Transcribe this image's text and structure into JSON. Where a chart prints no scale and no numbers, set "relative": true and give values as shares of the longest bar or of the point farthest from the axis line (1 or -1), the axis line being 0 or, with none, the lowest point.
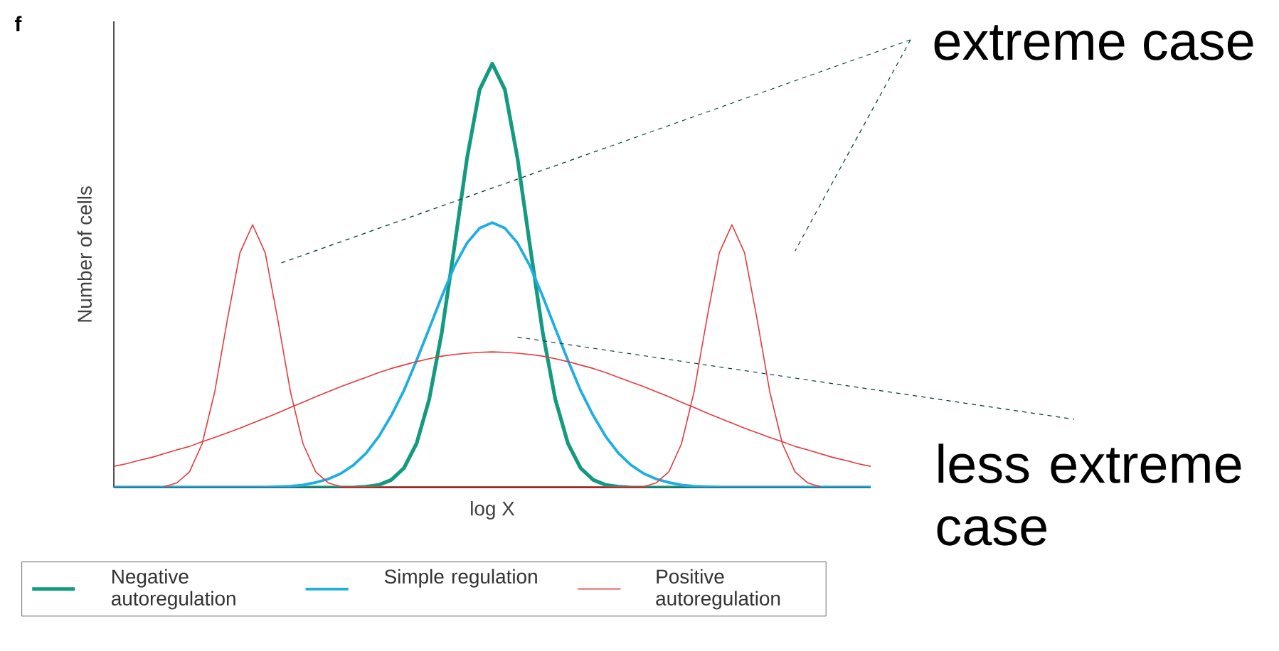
{
  "chart_data": {
    "type": "line",
    "relative": true,
    "xlabel": "log X",
    "ylabel": "Number of cells",
    "categories": [
      null,
      null,
      null,
      null,
      null,
      null,
      null,
      null,
      null,
      null,
      null,
      null,
      null,
      null,
      null,
      null,
      null,
      null,
      null,
      null,
      null,
      null,
      null,
      null,
      null,
      null,
      null,
      null,
      null,
      null,
      null,
      null,
      null,
      null,
      null,
      null,
      null,
      null,
      null,
      null,
      null,
      null,
      null,
      null,
      null,
      null,
      null,
      null,
      null,
      null,
      null,
      null,
      null,
      null,
      null,
      null,
      null,
      null,
      null,
      null,
      null
    ],
    "series": [
      {
        "name": "Negative autoregulation",
        "color": "#139a80",
        "values": [
          0,
          0,
          0,
          0,
          0,
          0,
          0,
          0,
          0,
          0,
          0,
          0,
          0,
          0,
          0,
          0,
          0,
          0,
          0,
          0,
          0.002,
          0.006,
          0.018,
          0.046,
          0.104,
          0.208,
          0.366,
          0.568,
          0.777,
          0.939,
          1,
          0.939,
          0.777,
          0.568,
          0.366,
          0.208,
          0.104,
          0.046,
          0.018,
          0.006,
          0.002,
          0,
          0,
          0,
          0,
          0,
          0,
          0,
          0,
          0,
          0,
          0,
          0,
          0,
          0,
          0,
          0,
          0,
          0,
          0,
          0
        ]
      },
      {
        "name": "Simple regulation",
        "color": "#1eaee0",
        "values": [
          0,
          0,
          0,
          0,
          0,
          0,
          0,
          0,
          0,
          0,
          0,
          0,
          0,
          0.002,
          0.003,
          0.006,
          0.012,
          0.02,
          0.033,
          0.053,
          0.081,
          0.12,
          0.17,
          0.229,
          0.3,
          0.375,
          0.451,
          0.522,
          0.577,
          0.612,
          0.625,
          0.612,
          0.577,
          0.522,
          0.451,
          0.375,
          0.3,
          0.229,
          0.17,
          0.12,
          0.081,
          0.053,
          0.033,
          0.02,
          0.012,
          0.006,
          0.003,
          0.002,
          0,
          0,
          0,
          0,
          0,
          0,
          0,
          0,
          0,
          0,
          0,
          0,
          0
        ]
      },
      {
        "name": "Positive autoregulation",
        "color": "#e63a3c",
        "values": [
          null,
          null,
          null,
          null,
          0.002,
          0.011,
          0.037,
          0.103,
          0.226,
          0.396,
          0.554,
          0.62,
          0.554,
          0.396,
          0.226,
          0.103,
          0.037,
          0.011,
          0.002,
          null,
          null,
          null,
          null,
          null,
          null,
          null,
          null,
          null,
          null,
          null,
          null,
          null,
          null,
          null,
          null,
          null,
          null,
          null,
          null,
          null,
          null,
          null,
          0.002,
          0.011,
          0.037,
          0.103,
          0.226,
          0.396,
          0.554,
          0.62,
          0.554,
          0.396,
          0.226,
          0.103,
          0.037,
          0.011,
          0.002,
          null,
          null,
          null,
          null
        ]
      },
      {
        "color": "#e63a3c",
        "values": [
          0.05,
          0.056,
          0.064,
          0.071,
          0.08,
          0.089,
          0.097,
          0.108,
          0.118,
          0.129,
          0.14,
          0.152,
          0.164,
          0.176,
          0.189,
          0.201,
          0.214,
          0.226,
          0.238,
          0.249,
          0.26,
          0.271,
          0.281,
          0.289,
          0.297,
          0.304,
          0.31,
          0.314,
          0.317,
          0.319,
          0.32,
          0.319,
          0.317,
          0.314,
          0.31,
          0.304,
          0.297,
          0.289,
          0.281,
          0.271,
          0.26,
          0.249,
          0.238,
          0.226,
          0.214,
          0.201,
          0.189,
          0.176,
          0.164,
          0.152,
          0.14,
          0.129,
          0.118,
          0.108,
          0.097,
          0.089,
          0.08,
          0.071,
          0.064,
          0.056,
          0.05
        ]
      }
    ],
    "annotations": [
      "f",
      "extreme case",
      "less extreme case"
    ],
    "legend": "bottom",
    "marker": "none",
    "line_style": "solid"
  }
}
